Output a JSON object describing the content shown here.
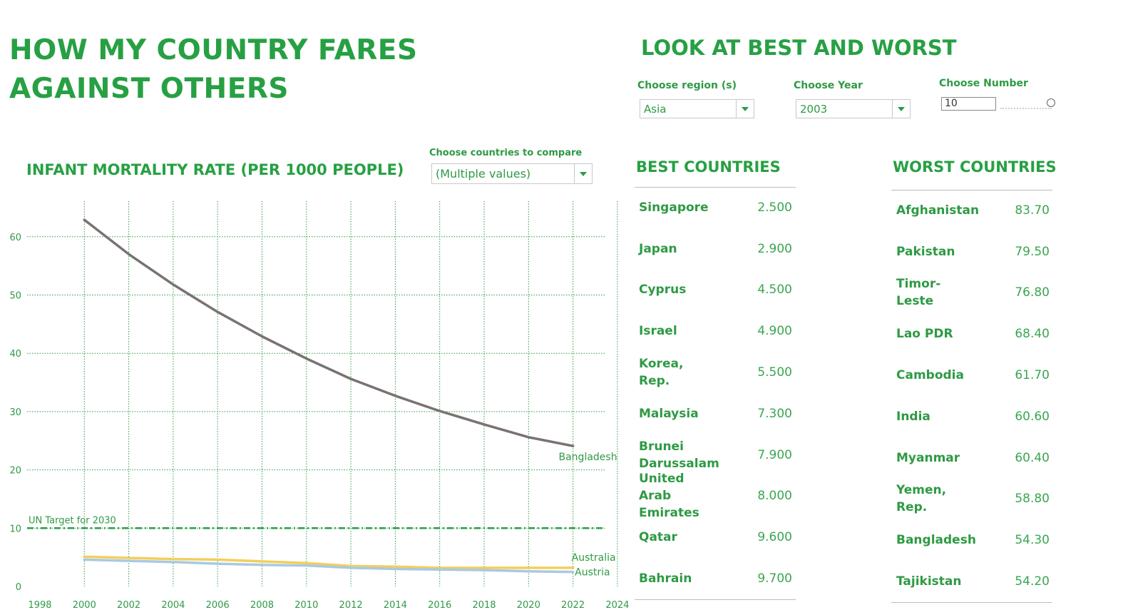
{
  "page": {
    "main_title": "HOW MY COUNTRY FARES AGAINST OTHERS",
    "right_title": "LOOK AT BEST AND WORST",
    "accent_color": "#27a043"
  },
  "filters": {
    "region": {
      "label": "Choose region (s)",
      "value": "Asia"
    },
    "year": {
      "label": "Choose Year",
      "value": "2003"
    },
    "number": {
      "label": "Choose Number",
      "value": "10"
    },
    "compare": {
      "label": "Choose countries to compare",
      "value": "(Multiple values)"
    }
  },
  "best": {
    "heading": "BEST COUNTRIES",
    "rows": [
      {
        "name": "Singapore",
        "value": "2.500"
      },
      {
        "name": "Japan",
        "value": "2.900"
      },
      {
        "name": "Cyprus",
        "value": "4.500"
      },
      {
        "name": "Israel",
        "value": "4.900"
      },
      {
        "name": "Korea, Rep.",
        "value": "5.500"
      },
      {
        "name": "Malaysia",
        "value": "7.300"
      },
      {
        "name": "Brunei Darussalam",
        "value": "7.900"
      },
      {
        "name": "United Arab Emirates",
        "value": "8.000"
      },
      {
        "name": "Qatar",
        "value": "9.600"
      },
      {
        "name": "Bahrain",
        "value": "9.700"
      }
    ]
  },
  "worst": {
    "heading": "WORST COUNTRIES",
    "rows": [
      {
        "name": "Afghanistan",
        "value": "83.70"
      },
      {
        "name": "Pakistan",
        "value": "79.50"
      },
      {
        "name": "Timor-Leste",
        "value": "76.80"
      },
      {
        "name": "Lao PDR",
        "value": "68.40"
      },
      {
        "name": "Cambodia",
        "value": "61.70"
      },
      {
        "name": "India",
        "value": "60.60"
      },
      {
        "name": "Myanmar",
        "value": "60.40"
      },
      {
        "name": "Yemen, Rep.",
        "value": "58.80"
      },
      {
        "name": "Bangladesh",
        "value": "54.30"
      },
      {
        "name": "Tajikistan",
        "value": "54.20"
      }
    ]
  },
  "chart_data": {
    "type": "line",
    "title": "INFANT MORTALITY RATE (PER 1000 PEOPLE)",
    "xlabel": "",
    "ylabel": "",
    "xlim": [
      1998,
      2024
    ],
    "ylim": [
      0,
      65
    ],
    "x_ticks": [
      "1998",
      "2000",
      "2002",
      "2004",
      "2006",
      "2008",
      "2010",
      "2012",
      "2014",
      "2016",
      "2018",
      "2020",
      "2022",
      "2024"
    ],
    "y_ticks": [
      "0",
      "10",
      "20",
      "30",
      "40",
      "50",
      "60"
    ],
    "grid": true,
    "series": [
      {
        "name": "Bangladesh",
        "color": "#7a7272",
        "x": [
          2000,
          2002,
          2004,
          2006,
          2008,
          2010,
          2012,
          2014,
          2016,
          2018,
          2020,
          2022
        ],
        "y": [
          62.9,
          57.0,
          51.8,
          47.1,
          42.9,
          39.1,
          35.6,
          32.7,
          30.1,
          27.8,
          25.6,
          24.1
        ]
      },
      {
        "name": "Australia",
        "color": "#f2cf5b",
        "x": [
          2000,
          2002,
          2004,
          2006,
          2008,
          2010,
          2012,
          2014,
          2016,
          2018,
          2020,
          2022
        ],
        "y": [
          5.1,
          4.9,
          4.7,
          4.6,
          4.3,
          4.0,
          3.5,
          3.4,
          3.2,
          3.2,
          3.2,
          3.2
        ]
      },
      {
        "name": "Austria",
        "color": "#a9c9e3",
        "x": [
          2000,
          2002,
          2004,
          2006,
          2008,
          2010,
          2012,
          2014,
          2016,
          2018,
          2020,
          2022
        ],
        "y": [
          4.6,
          4.4,
          4.2,
          3.9,
          3.7,
          3.6,
          3.2,
          3.0,
          2.9,
          2.8,
          2.6,
          2.5
        ]
      }
    ],
    "reference_line": {
      "label": "UN Target for 2030",
      "value": 10,
      "color": "#27a043"
    }
  }
}
